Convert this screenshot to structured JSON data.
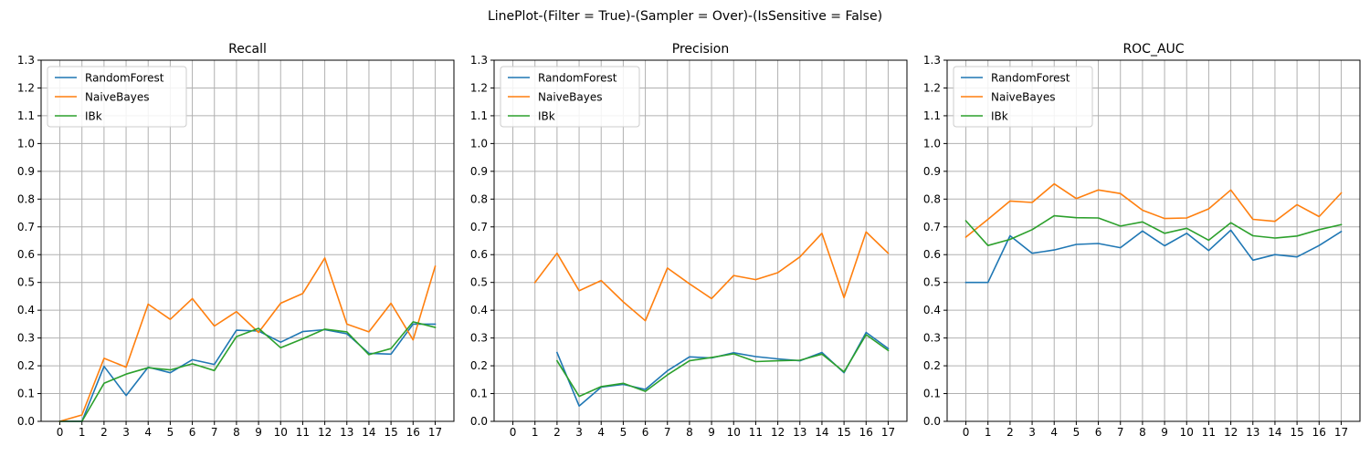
{
  "figure": {
    "suptitle": "LinePlot-(Filter = True)-(Sampler = Over)-(IsSensitive = False)"
  },
  "colors": {
    "series": [
      "#1f77b4",
      "#ff7f0e",
      "#2ca02c"
    ],
    "grid": "#b0b0b0"
  },
  "chart_data": [
    {
      "type": "line",
      "title": "Recall",
      "xlabel": "",
      "ylabel": "",
      "x": [
        0,
        1,
        2,
        3,
        4,
        5,
        6,
        7,
        8,
        9,
        10,
        11,
        12,
        13,
        14,
        15,
        16,
        17
      ],
      "ylim": [
        0.0,
        1.3
      ],
      "yticks": [
        "0.0",
        "0.1",
        "0.2",
        "0.3",
        "0.4",
        "0.5",
        "0.6",
        "0.7",
        "0.8",
        "0.9",
        "1.0",
        "1.1",
        "1.2",
        "1.3"
      ],
      "grid": true,
      "legend": "top-left",
      "series": [
        {
          "name": "RandomForest",
          "values": [
            0.0,
            0.0,
            0.198,
            0.093,
            0.195,
            0.175,
            0.222,
            0.205,
            0.328,
            0.325,
            0.285,
            0.323,
            0.33,
            0.315,
            0.245,
            0.242,
            0.35,
            0.35
          ]
        },
        {
          "name": "NaiveBayes",
          "values": [
            0.0,
            0.023,
            0.227,
            0.195,
            0.422,
            0.367,
            0.442,
            0.343,
            0.395,
            0.32,
            0.425,
            0.46,
            0.588,
            0.35,
            0.322,
            0.425,
            0.293,
            0.558
          ]
        },
        {
          "name": "IBk",
          "values": [
            0.0,
            0.0,
            0.137,
            0.17,
            0.193,
            0.185,
            0.207,
            0.183,
            0.305,
            0.335,
            0.265,
            0.297,
            0.332,
            0.322,
            0.24,
            0.262,
            0.358,
            0.338
          ]
        }
      ]
    },
    {
      "type": "line",
      "title": "Precision",
      "xlabel": "",
      "ylabel": "",
      "x": [
        0,
        1,
        2,
        3,
        4,
        5,
        6,
        7,
        8,
        9,
        10,
        11,
        12,
        13,
        14,
        15,
        16,
        17
      ],
      "ylim": [
        0.0,
        1.3
      ],
      "yticks": [
        "0.0",
        "0.1",
        "0.2",
        "0.3",
        "0.4",
        "0.5",
        "0.6",
        "0.7",
        "0.8",
        "0.9",
        "1.0",
        "1.1",
        "1.2",
        "1.3"
      ],
      "grid": true,
      "legend": "top-left",
      "series": [
        {
          "name": "RandomForest",
          "values": [
            null,
            null,
            0.248,
            0.055,
            0.123,
            0.133,
            0.115,
            0.182,
            0.232,
            0.228,
            0.247,
            0.233,
            0.225,
            0.218,
            0.248,
            0.175,
            0.32,
            0.262
          ]
        },
        {
          "name": "NaiveBayes",
          "values": [
            null,
            0.5,
            0.605,
            0.47,
            0.507,
            0.43,
            0.362,
            0.552,
            0.495,
            0.442,
            0.525,
            0.51,
            0.535,
            0.592,
            0.677,
            0.445,
            0.682,
            0.605
          ]
        },
        {
          "name": "IBk",
          "values": [
            null,
            null,
            0.218,
            0.09,
            0.125,
            0.137,
            0.108,
            0.167,
            0.218,
            0.23,
            0.243,
            0.215,
            0.218,
            0.22,
            0.242,
            0.178,
            0.312,
            0.255
          ]
        }
      ]
    },
    {
      "type": "line",
      "title": "ROC_AUC",
      "xlabel": "",
      "ylabel": "",
      "x": [
        0,
        1,
        2,
        3,
        4,
        5,
        6,
        7,
        8,
        9,
        10,
        11,
        12,
        13,
        14,
        15,
        16,
        17
      ],
      "ylim": [
        0.0,
        1.3
      ],
      "yticks": [
        "0.0",
        "0.1",
        "0.2",
        "0.3",
        "0.4",
        "0.5",
        "0.6",
        "0.7",
        "0.8",
        "0.9",
        "1.0",
        "1.1",
        "1.2",
        "1.3"
      ],
      "grid": true,
      "legend": "top-left",
      "series": [
        {
          "name": "RandomForest",
          "values": [
            0.5,
            0.5,
            0.668,
            0.605,
            0.617,
            0.637,
            0.64,
            0.625,
            0.685,
            0.632,
            0.677,
            0.615,
            0.688,
            0.58,
            0.6,
            0.592,
            0.633,
            0.683
          ]
        },
        {
          "name": "NaiveBayes",
          "values": [
            0.663,
            0.727,
            0.793,
            0.788,
            0.855,
            0.802,
            0.833,
            0.82,
            0.76,
            0.73,
            0.732,
            0.765,
            0.833,
            0.727,
            0.72,
            0.78,
            0.737,
            0.822
          ]
        },
        {
          "name": "IBk",
          "values": [
            0.722,
            0.633,
            0.655,
            0.69,
            0.74,
            0.733,
            0.732,
            0.703,
            0.718,
            0.677,
            0.695,
            0.652,
            0.715,
            0.668,
            0.66,
            0.667,
            0.69,
            0.708
          ]
        }
      ]
    }
  ]
}
